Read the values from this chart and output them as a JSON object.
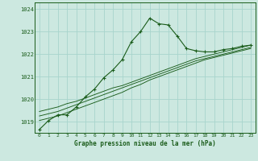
{
  "title": "Graphe pression niveau de la mer (hPa)",
  "background_color": "#cce8e0",
  "grid_color": "#a8d4cc",
  "line_color": "#1a5c1a",
  "xlim": [
    -0.5,
    23.5
  ],
  "ylim": [
    1018.5,
    1024.3
  ],
  "yticks": [
    1019,
    1020,
    1021,
    1022,
    1023,
    1024
  ],
  "xticks": [
    0,
    1,
    2,
    3,
    4,
    5,
    6,
    7,
    8,
    9,
    10,
    11,
    12,
    13,
    14,
    15,
    16,
    17,
    18,
    19,
    20,
    21,
    22,
    23
  ],
  "series": {
    "main": [
      1018.65,
      1019.05,
      1019.3,
      1019.3,
      1019.65,
      1020.1,
      1020.45,
      1020.95,
      1021.3,
      1021.75,
      1022.55,
      1023.0,
      1023.6,
      1023.35,
      1023.3,
      1022.8,
      1022.25,
      1022.15,
      1022.1,
      1022.1,
      1022.2,
      1022.25,
      1022.35,
      1022.4
    ],
    "line2": [
      1019.05,
      1019.15,
      1019.25,
      1019.4,
      1019.55,
      1019.7,
      1019.85,
      1020.0,
      1020.15,
      1020.3,
      1020.5,
      1020.65,
      1020.85,
      1021.0,
      1021.15,
      1021.3,
      1021.45,
      1021.6,
      1021.75,
      1021.85,
      1021.95,
      1022.05,
      1022.15,
      1022.25
    ],
    "line3": [
      1019.25,
      1019.35,
      1019.45,
      1019.6,
      1019.75,
      1019.9,
      1020.05,
      1020.2,
      1020.35,
      1020.5,
      1020.65,
      1020.8,
      1020.95,
      1021.1,
      1021.25,
      1021.4,
      1021.55,
      1021.7,
      1021.8,
      1021.9,
      1022.0,
      1022.1,
      1022.2,
      1022.3
    ],
    "line4": [
      1019.45,
      1019.55,
      1019.65,
      1019.8,
      1019.9,
      1020.05,
      1020.2,
      1020.35,
      1020.5,
      1020.6,
      1020.75,
      1020.9,
      1021.05,
      1021.2,
      1021.35,
      1021.5,
      1021.65,
      1021.8,
      1021.9,
      1022.0,
      1022.1,
      1022.2,
      1022.3,
      1022.4
    ]
  }
}
